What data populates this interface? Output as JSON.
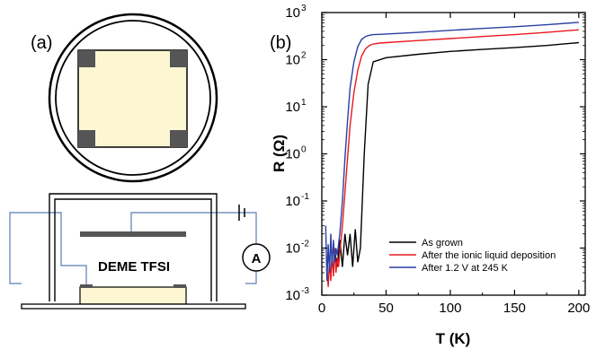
{
  "panels": {
    "a_label": "(a)",
    "b_label": "(b)"
  },
  "schematic": {
    "cell_label": "DEME TFSI",
    "meter_label": "A",
    "colors": {
      "sample_fill": "#fdf6d2",
      "contact_fill": "#555555",
      "wire": "#5a7db5",
      "electrode": "#555555"
    }
  },
  "chart_data": {
    "type": "line",
    "xlabel": "T (K)",
    "ylabel": "R (Ω)",
    "xlim": [
      0,
      205
    ],
    "ylim": [
      0.001,
      1000
    ],
    "yscale": "log",
    "xticks": [
      0,
      50,
      100,
      150,
      200
    ],
    "yticks": [
      {
        "value": 0.001,
        "base": "10",
        "exp": "-3"
      },
      {
        "value": 0.01,
        "base": "10",
        "exp": "-2"
      },
      {
        "value": 0.1,
        "base": "10",
        "exp": "-1"
      },
      {
        "value": 1,
        "base": "10",
        "exp": "0"
      },
      {
        "value": 10,
        "base": "10",
        "exp": "1"
      },
      {
        "value": 100,
        "base": "10",
        "exp": "2"
      },
      {
        "value": 1000,
        "base": "10",
        "exp": "3"
      }
    ],
    "grid": false,
    "legend_position": "bottom-right",
    "series": [
      {
        "name": "As grown",
        "color": "#000000",
        "x": [
          10,
          12,
          14,
          16,
          18,
          20,
          22,
          24,
          26,
          28,
          30,
          33,
          36,
          40,
          50,
          75,
          100,
          125,
          150,
          175,
          200
        ],
        "y": [
          0.009,
          0.004,
          0.015,
          0.004,
          0.02,
          0.007,
          0.02,
          0.004,
          0.025,
          0.005,
          0.01,
          1,
          30,
          90,
          110,
          130,
          150,
          165,
          180,
          200,
          230
        ]
      },
      {
        "name": "After the ionic liquid deposition",
        "color": "#e8191f",
        "x": [
          4,
          5,
          6,
          7,
          8,
          9,
          10,
          11,
          12,
          13,
          14,
          16,
          18,
          20,
          22,
          25,
          28,
          31,
          34,
          37,
          40,
          45,
          50,
          75,
          100,
          125,
          150,
          175,
          200
        ],
        "y": [
          0.004,
          0.0015,
          0.006,
          0.002,
          0.008,
          0.0025,
          0.01,
          0.003,
          0.006,
          0.004,
          0.008,
          0.03,
          0.15,
          0.8,
          4,
          20,
          60,
          120,
          170,
          200,
          215,
          225,
          230,
          255,
          280,
          310,
          340,
          380,
          430
        ]
      },
      {
        "name": "After 1.2 V at 245 K",
        "color": "#2b3fa3",
        "x": [
          3,
          4,
          5,
          6,
          7,
          8,
          9,
          10,
          11,
          12,
          13,
          14,
          16,
          18,
          20,
          22,
          25,
          28,
          31,
          34,
          37,
          40,
          45,
          50,
          75,
          100,
          125,
          150,
          175,
          200
        ],
        "y": [
          0.03,
          0.002,
          0.012,
          0.003,
          0.02,
          0.004,
          0.015,
          0.005,
          0.01,
          0.007,
          0.012,
          0.02,
          0.1,
          0.8,
          5,
          25,
          90,
          190,
          270,
          310,
          330,
          340,
          345,
          350,
          380,
          420,
          460,
          500,
          550,
          620
        ]
      }
    ]
  }
}
